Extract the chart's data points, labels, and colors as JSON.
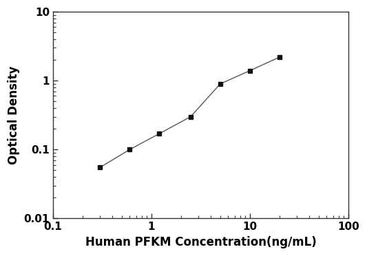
{
  "x": [
    0.3,
    0.6,
    1.2,
    2.5,
    5.0,
    10.0,
    20.0
  ],
  "y": [
    0.055,
    0.1,
    0.17,
    0.3,
    0.9,
    1.4,
    2.2
  ],
  "xlabel": "Human PFKM Concentration(ng/mL)",
  "ylabel": "Optical Density",
  "xlim": [
    0.1,
    100
  ],
  "ylim": [
    0.01,
    10
  ],
  "line_color": "#555555",
  "marker_color": "#111111",
  "marker": "s",
  "marker_size": 5,
  "line_width": 1.0,
  "background_color": "#ffffff",
  "xlabel_fontsize": 12,
  "ylabel_fontsize": 12,
  "tick_fontsize": 11,
  "ytick_labels": [
    "0.01",
    "0.1",
    "1",
    "10"
  ],
  "ytick_values": [
    0.01,
    0.1,
    1,
    10
  ],
  "xtick_labels": [
    "0.1",
    "1",
    "10",
    "100"
  ],
  "xtick_values": [
    0.1,
    1,
    10,
    100
  ]
}
